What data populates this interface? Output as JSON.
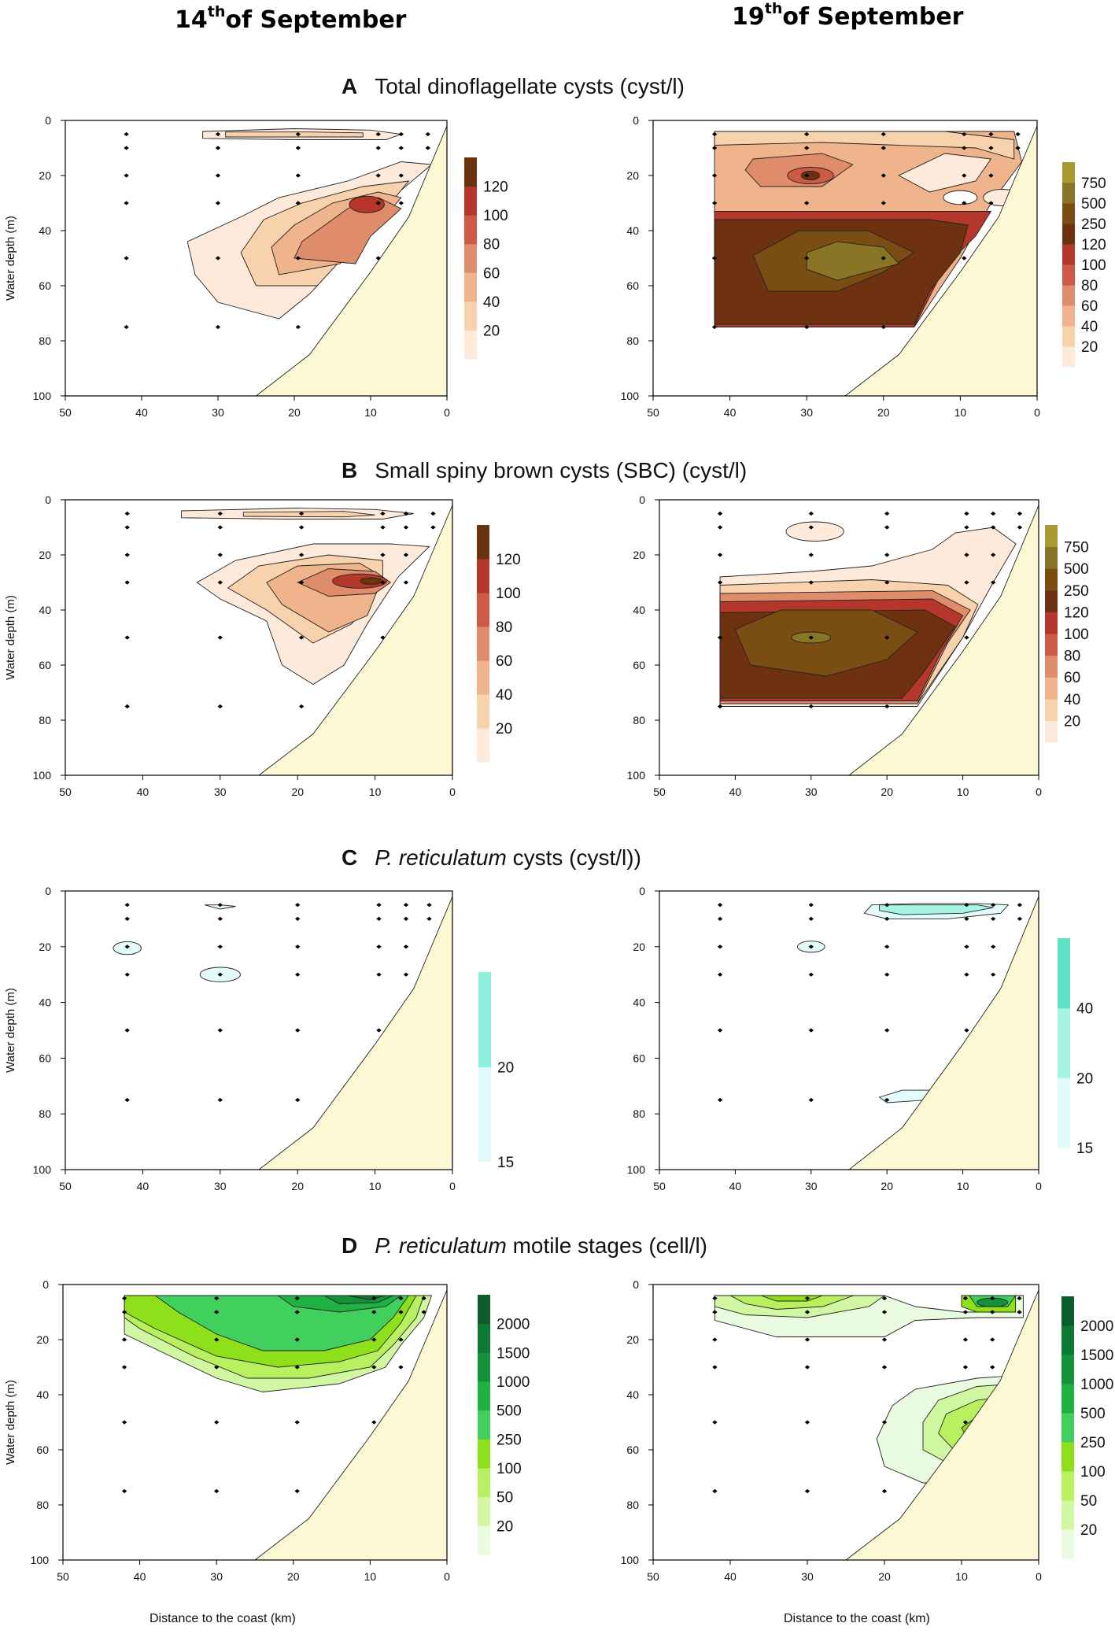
{
  "header": {
    "left_date": {
      "day": "14",
      "suffix": "th",
      "rest": "of September"
    },
    "right_date": {
      "day": "19",
      "suffix": "th",
      "rest": "of September"
    },
    "x_axis_label": "Distance to the coast (km)",
    "y_axis_label": "Water depth (m)"
  },
  "rows": [
    {
      "letter": "A",
      "italic": "",
      "title": "Total dinoflagellate cysts (cyst/l)"
    },
    {
      "letter": "B",
      "italic": "",
      "title": "Small spiny brown cysts (SBC) (cyst/l)"
    },
    {
      "letter": "C",
      "italic": "P. reticulatum",
      "title": " cysts (cyst/l))"
    },
    {
      "letter": "D",
      "italic": "P. reticulatum",
      "title": " motile stages (cell/l)"
    }
  ],
  "chart_data": [
    {
      "type": "contour",
      "panel": "A-14-September",
      "title": "Total dinoflagellate cysts (cyst/l)",
      "xlabel": "Distance to the coast (km)",
      "ylabel": "Water depth (m)",
      "xlim": [
        50,
        0
      ],
      "ylim": [
        100,
        0
      ],
      "x_ticks": [
        50,
        40,
        30,
        20,
        10,
        0
      ],
      "y_ticks": [
        0,
        20,
        40,
        60,
        80,
        100
      ],
      "legend_levels": [
        20,
        40,
        60,
        80,
        100,
        120
      ],
      "legend_colors": [
        "#fdeadb",
        "#f8d2ad",
        "#f0b48c",
        "#df8c6a",
        "#cc5a45",
        "#b5362a",
        "#6b3310"
      ],
      "stations": [
        [
          42,
          5
        ],
        [
          42,
          10
        ],
        [
          42,
          20
        ],
        [
          42,
          30
        ],
        [
          42,
          50
        ],
        [
          42,
          75
        ],
        [
          30,
          5
        ],
        [
          30,
          10
        ],
        [
          30,
          20
        ],
        [
          30,
          30
        ],
        [
          30,
          50
        ],
        [
          30,
          75
        ],
        [
          19.5,
          5
        ],
        [
          19.5,
          10
        ],
        [
          19.5,
          20
        ],
        [
          19.5,
          30
        ],
        [
          19.5,
          50
        ],
        [
          19.5,
          75
        ],
        [
          9,
          5
        ],
        [
          9,
          10
        ],
        [
          9,
          20
        ],
        [
          9,
          30
        ],
        [
          9,
          50
        ],
        [
          6,
          5
        ],
        [
          6,
          10
        ],
        [
          6,
          20
        ],
        [
          6,
          30
        ],
        [
          2.5,
          5
        ],
        [
          2.5,
          10
        ]
      ],
      "peak": {
        "x": 10,
        "y": 30,
        "level": 120
      }
    },
    {
      "type": "contour",
      "panel": "A-19-September",
      "title": "Total dinoflagellate cysts (cyst/l)",
      "xlabel": "Distance to the coast (km)",
      "ylabel": "Water depth (m)",
      "xlim": [
        50,
        0
      ],
      "ylim": [
        100,
        0
      ],
      "x_ticks": [
        50,
        40,
        30,
        20,
        10,
        0
      ],
      "y_ticks": [
        0,
        20,
        40,
        60,
        80,
        100
      ],
      "legend_levels": [
        20,
        40,
        60,
        80,
        100,
        120,
        250,
        500,
        750
      ],
      "legend_colors": [
        "#fdeadb",
        "#f8d2ad",
        "#f0b48c",
        "#df8c6a",
        "#cc5a45",
        "#b5362a",
        "#6e3210",
        "#7a4d12",
        "#8a7425",
        "#a79a33"
      ],
      "stations": [
        [
          42,
          5
        ],
        [
          42,
          10
        ],
        [
          42,
          20
        ],
        [
          42,
          30
        ],
        [
          42,
          50
        ],
        [
          42,
          75
        ],
        [
          30,
          5
        ],
        [
          30,
          10
        ],
        [
          30,
          20
        ],
        [
          30,
          30
        ],
        [
          30,
          50
        ],
        [
          30,
          75
        ],
        [
          20,
          5
        ],
        [
          20,
          10
        ],
        [
          20,
          20
        ],
        [
          20,
          30
        ],
        [
          20,
          50
        ],
        [
          20,
          75
        ],
        [
          9.5,
          5
        ],
        [
          9.5,
          10
        ],
        [
          9.5,
          20
        ],
        [
          9.5,
          30
        ],
        [
          9.5,
          50
        ],
        [
          6,
          5
        ],
        [
          6,
          10
        ],
        [
          6,
          20
        ],
        [
          6,
          30
        ],
        [
          2.5,
          5
        ],
        [
          2.5,
          10
        ]
      ],
      "peak": {
        "x": 27,
        "y": 52,
        "level": 750
      }
    },
    {
      "type": "contour",
      "panel": "B-14-September",
      "title": "Small spiny brown cysts (SBC) (cyst/l)",
      "xlabel": "Distance to the coast (km)",
      "ylabel": "Water depth (m)",
      "xlim": [
        50,
        0
      ],
      "ylim": [
        100,
        0
      ],
      "x_ticks": [
        50,
        40,
        30,
        20,
        10,
        0
      ],
      "y_ticks": [
        0,
        20,
        40,
        60,
        80,
        100
      ],
      "legend_levels": [
        20,
        40,
        60,
        80,
        100,
        120
      ],
      "legend_colors": [
        "#fdeadb",
        "#f8d2ad",
        "#f0b48c",
        "#df8c6a",
        "#cc5a45",
        "#b5362a",
        "#6b3310"
      ],
      "stations": [
        [
          42,
          5
        ],
        [
          42,
          10
        ],
        [
          42,
          20
        ],
        [
          42,
          30
        ],
        [
          42,
          50
        ],
        [
          42,
          75
        ],
        [
          30,
          5
        ],
        [
          30,
          10
        ],
        [
          30,
          20
        ],
        [
          30,
          30
        ],
        [
          30,
          50
        ],
        [
          30,
          75
        ],
        [
          19.5,
          5
        ],
        [
          19.5,
          10
        ],
        [
          19.5,
          20
        ],
        [
          19.5,
          30
        ],
        [
          19.5,
          50
        ],
        [
          19.5,
          75
        ],
        [
          9,
          5
        ],
        [
          9,
          10
        ],
        [
          9,
          20
        ],
        [
          9,
          30
        ],
        [
          9,
          50
        ],
        [
          6,
          5
        ],
        [
          6,
          10
        ],
        [
          6,
          20
        ],
        [
          6,
          30
        ],
        [
          2.5,
          5
        ],
        [
          2.5,
          10
        ]
      ],
      "peak": {
        "x": 11,
        "y": 30,
        "level": 120
      }
    },
    {
      "type": "contour",
      "panel": "B-19-September",
      "title": "Small spiny brown cysts (SBC) (cyst/l)",
      "xlabel": "Distance to the coast (km)",
      "ylabel": "Water depth (m)",
      "xlim": [
        50,
        0
      ],
      "ylim": [
        100,
        0
      ],
      "x_ticks": [
        50,
        40,
        30,
        20,
        10,
        0
      ],
      "y_ticks": [
        0,
        20,
        40,
        60,
        80,
        100
      ],
      "legend_levels": [
        20,
        40,
        60,
        80,
        100,
        120,
        250,
        500,
        750
      ],
      "legend_colors": [
        "#fdeadb",
        "#f8d2ad",
        "#f0b48c",
        "#df8c6a",
        "#cc5a45",
        "#b5362a",
        "#6e3210",
        "#7a4d12",
        "#8a7425",
        "#a79a33"
      ],
      "stations": [
        [
          42,
          5
        ],
        [
          42,
          10
        ],
        [
          42,
          20
        ],
        [
          42,
          30
        ],
        [
          42,
          50
        ],
        [
          42,
          75
        ],
        [
          30,
          5
        ],
        [
          30,
          10
        ],
        [
          30,
          20
        ],
        [
          30,
          30
        ],
        [
          30,
          50
        ],
        [
          30,
          75
        ],
        [
          20,
          5
        ],
        [
          20,
          10
        ],
        [
          20,
          20
        ],
        [
          20,
          30
        ],
        [
          20,
          50
        ],
        [
          20,
          75
        ],
        [
          9.5,
          5
        ],
        [
          9.5,
          10
        ],
        [
          9.5,
          20
        ],
        [
          9.5,
          30
        ],
        [
          9.5,
          50
        ],
        [
          6,
          5
        ],
        [
          6,
          10
        ],
        [
          6,
          20
        ],
        [
          6,
          30
        ],
        [
          2.5,
          5
        ],
        [
          2.5,
          10
        ]
      ],
      "peak": {
        "x": 30,
        "y": 50,
        "level": 750
      }
    },
    {
      "type": "contour",
      "panel": "C-14-September",
      "title": "P. reticulatum cysts (cyst/l))",
      "xlabel": "Distance to the coast (km)",
      "ylabel": "Water depth (m)",
      "xlim": [
        50,
        0
      ],
      "ylim": [
        100,
        0
      ],
      "x_ticks": [
        50,
        40,
        30,
        20,
        10,
        0
      ],
      "y_ticks": [
        0,
        20,
        40,
        60,
        80,
        100
      ],
      "legend_levels": [
        15,
        20
      ],
      "legend_colors": [
        "#e3fbfa",
        "#8ff0e0"
      ],
      "stations": [
        [
          42,
          5
        ],
        [
          42,
          10
        ],
        [
          42,
          20
        ],
        [
          42,
          30
        ],
        [
          42,
          50
        ],
        [
          42,
          75
        ],
        [
          30,
          5
        ],
        [
          30,
          10
        ],
        [
          30,
          20
        ],
        [
          30,
          30
        ],
        [
          30,
          50
        ],
        [
          30,
          75
        ],
        [
          20,
          5
        ],
        [
          20,
          10
        ],
        [
          20,
          20
        ],
        [
          20,
          30
        ],
        [
          20,
          50
        ],
        [
          20,
          75
        ],
        [
          9.5,
          5
        ],
        [
          9.5,
          10
        ],
        [
          9.5,
          20
        ],
        [
          9.5,
          30
        ],
        [
          9.5,
          50
        ],
        [
          6,
          5
        ],
        [
          6,
          10
        ],
        [
          6,
          20
        ],
        [
          6,
          30
        ],
        [
          3,
          5
        ],
        [
          3,
          10
        ]
      ],
      "patches": [
        {
          "x": 42,
          "y": 20
        },
        {
          "x": 30,
          "y": 30
        },
        {
          "x": 30,
          "y": 5
        }
      ]
    },
    {
      "type": "contour",
      "panel": "C-19-September",
      "title": "P. reticulatum cysts (cyst/l))",
      "xlabel": "Distance to the coast (km)",
      "ylabel": "Water depth (m)",
      "xlim": [
        50,
        0
      ],
      "ylim": [
        100,
        0
      ],
      "x_ticks": [
        50,
        40,
        30,
        20,
        10,
        0
      ],
      "y_ticks": [
        0,
        20,
        40,
        60,
        80,
        100
      ],
      "legend_levels": [
        15,
        20,
        40
      ],
      "legend_colors": [
        "#e3fbfa",
        "#a6f5e4",
        "#5fe0c2"
      ],
      "stations": [
        [
          42,
          5
        ],
        [
          42,
          10
        ],
        [
          42,
          20
        ],
        [
          42,
          30
        ],
        [
          42,
          50
        ],
        [
          42,
          75
        ],
        [
          30,
          5
        ],
        [
          30,
          10
        ],
        [
          30,
          20
        ],
        [
          30,
          30
        ],
        [
          30,
          50
        ],
        [
          30,
          75
        ],
        [
          20,
          5
        ],
        [
          20,
          10
        ],
        [
          20,
          20
        ],
        [
          20,
          30
        ],
        [
          20,
          50
        ],
        [
          20,
          75
        ],
        [
          9.5,
          5
        ],
        [
          9.5,
          10
        ],
        [
          9.5,
          20
        ],
        [
          9.5,
          30
        ],
        [
          9.5,
          50
        ],
        [
          6,
          5
        ],
        [
          6,
          10
        ],
        [
          6,
          20
        ],
        [
          6,
          30
        ],
        [
          2.5,
          5
        ],
        [
          2.5,
          10
        ]
      ],
      "patches": [
        {
          "x": 14,
          "y": 7
        },
        {
          "x": 30,
          "y": 20
        },
        {
          "x": 16,
          "y": 73
        }
      ]
    },
    {
      "type": "contour",
      "panel": "D-14-September",
      "title": "P. reticulatum motile stages (cell/l)",
      "xlabel": "Distance to the coast (km)",
      "ylabel": "Water depth (m)",
      "xlim": [
        50,
        0
      ],
      "ylim": [
        100,
        0
      ],
      "x_ticks": [
        50,
        40,
        30,
        20,
        10,
        0
      ],
      "y_ticks": [
        0,
        20,
        40,
        60,
        80,
        100
      ],
      "legend_levels": [
        20,
        50,
        100,
        250,
        500,
        1000,
        1500,
        2000
      ],
      "legend_colors": [
        "#eafce0",
        "#d2f7a3",
        "#b8f060",
        "#8ee01a",
        "#41cf5e",
        "#1fb242",
        "#13923a",
        "#0c7a33",
        "#0b5e2c"
      ],
      "stations": [
        [
          42,
          5
        ],
        [
          42,
          10
        ],
        [
          42,
          20
        ],
        [
          42,
          30
        ],
        [
          42,
          50
        ],
        [
          42,
          75
        ],
        [
          30,
          5
        ],
        [
          30,
          10
        ],
        [
          30,
          20
        ],
        [
          30,
          30
        ],
        [
          30,
          50
        ],
        [
          30,
          75
        ],
        [
          19.5,
          5
        ],
        [
          19.5,
          10
        ],
        [
          19.5,
          20
        ],
        [
          19.5,
          30
        ],
        [
          19.5,
          50
        ],
        [
          19.5,
          75
        ],
        [
          9.5,
          5
        ],
        [
          9.5,
          10
        ],
        [
          9.5,
          20
        ],
        [
          9.5,
          30
        ],
        [
          9.5,
          50
        ],
        [
          6,
          5
        ],
        [
          6,
          10
        ],
        [
          6,
          20
        ],
        [
          6,
          30
        ],
        [
          3,
          5
        ],
        [
          3,
          10
        ]
      ],
      "peak": {
        "x": 10,
        "y": 7,
        "level": 2000
      }
    },
    {
      "type": "contour",
      "panel": "D-19-September",
      "title": "P. reticulatum motile stages (cell/l)",
      "xlabel": "Distance to the coast (km)",
      "ylabel": "Water depth (m)",
      "xlim": [
        50,
        0
      ],
      "ylim": [
        100,
        0
      ],
      "x_ticks": [
        50,
        40,
        30,
        20,
        10,
        0
      ],
      "y_ticks": [
        0,
        20,
        40,
        60,
        80,
        100
      ],
      "legend_levels": [
        20,
        50,
        100,
        250,
        500,
        1000,
        1500,
        2000
      ],
      "legend_colors": [
        "#eafce0",
        "#d2f7a3",
        "#b8f060",
        "#8ee01a",
        "#41cf5e",
        "#1fb242",
        "#13923a",
        "#0c7a33",
        "#0b5e2c"
      ],
      "stations": [
        [
          42,
          5
        ],
        [
          42,
          10
        ],
        [
          42,
          20
        ],
        [
          42,
          30
        ],
        [
          42,
          50
        ],
        [
          42,
          75
        ],
        [
          30,
          5
        ],
        [
          30,
          10
        ],
        [
          30,
          20
        ],
        [
          30,
          30
        ],
        [
          30,
          50
        ],
        [
          30,
          75
        ],
        [
          20,
          5
        ],
        [
          20,
          10
        ],
        [
          20,
          20
        ],
        [
          20,
          30
        ],
        [
          20,
          50
        ],
        [
          20,
          75
        ],
        [
          9.5,
          5
        ],
        [
          9.5,
          10
        ],
        [
          9.5,
          20
        ],
        [
          9.5,
          30
        ],
        [
          9.5,
          50
        ],
        [
          6,
          5
        ],
        [
          6,
          10
        ],
        [
          6,
          20
        ],
        [
          6,
          30
        ],
        [
          2.5,
          5
        ],
        [
          2.5,
          10
        ]
      ],
      "peak": {
        "x": 6,
        "y": 6,
        "level": 2000
      }
    }
  ]
}
